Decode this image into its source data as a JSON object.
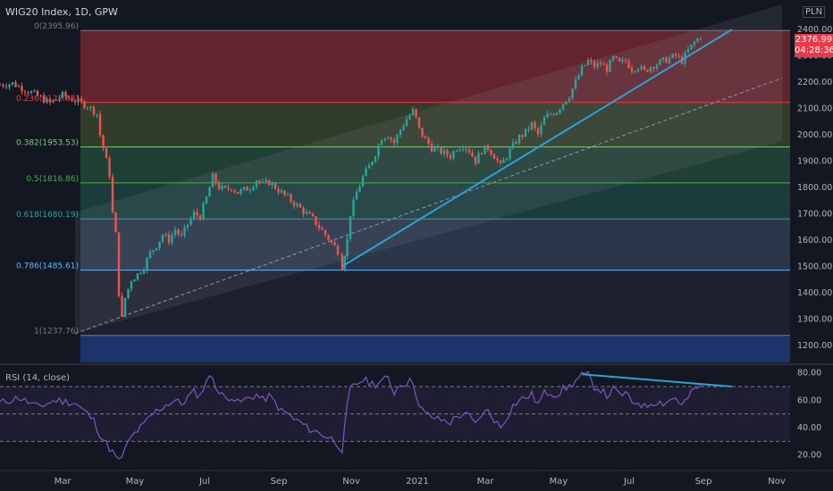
{
  "header": {
    "symbol": "WIG20 Index, 1D, GPW",
    "currency": "PLN"
  },
  "price_tag": {
    "price": "2376.99",
    "countdown": "04:28:36"
  },
  "rsi": {
    "title": "RSI (14, close)"
  },
  "colors": {
    "background": "#131722",
    "up": "#26a69a",
    "down": "#ef5350",
    "rsi_line": "#7e57c2",
    "trend": "#2ba2d6",
    "fib_line": "#787b86"
  },
  "chart_data": [
    {
      "type": "candlestick",
      "title": "WIG20 Index, 1D, GPW",
      "x_axis": {
        "labels": [
          "Mar",
          "May",
          "Jul",
          "Sep",
          "Nov",
          "2021",
          "Mar",
          "May",
          "Jul",
          "Sep",
          "Nov"
        ]
      },
      "y_axis": {
        "range": [
          1135,
          2505
        ],
        "ticks": [
          1200,
          1300,
          1400,
          1500,
          1600,
          1700,
          1800,
          1900,
          2000,
          2100,
          2200,
          2300,
          2400
        ],
        "tick_labels": [
          "1200.00",
          "1300.00",
          "1400.00",
          "1500.00",
          "1600.00",
          "1700.00",
          "1800.00",
          "1900.00",
          "2000.00",
          "2100.00",
          "2200.00",
          "2300.00",
          "2400.00"
        ]
      },
      "last_price": 2376.99,
      "fib_levels": [
        {
          "label": "0(2395.96)",
          "ratio": 0,
          "value": 2395.96
        },
        {
          "label": "0.236(2122.62)",
          "ratio": 0.236,
          "value": 2122.62
        },
        {
          "label": "0.382(1953.53)",
          "ratio": 0.382,
          "value": 1953.53
        },
        {
          "label": "0.5(1816.86)",
          "ratio": 0.5,
          "value": 1816.86
        },
        {
          "label": "0.618(1680.19)",
          "ratio": 0.618,
          "value": 1680.19
        },
        {
          "label": "0.786(1485.61)",
          "ratio": 0.786,
          "value": 1485.61
        },
        {
          "label": "1(1237.76)",
          "ratio": 1,
          "value": 1237.76
        }
      ],
      "price_path": [
        [
          0,
          2190
        ],
        [
          2,
          2195
        ],
        [
          5,
          2160
        ],
        [
          8,
          2120
        ],
        [
          10,
          2150
        ],
        [
          12,
          2130
        ],
        [
          14,
          2110
        ],
        [
          15.5,
          2080
        ],
        [
          16,
          2000
        ],
        [
          17,
          1900
        ],
        [
          17.5,
          1850
        ],
        [
          18,
          1700
        ],
        [
          18.5,
          1620
        ],
        [
          19,
          1400
        ],
        [
          19.5,
          1300
        ],
        [
          20,
          1380
        ],
        [
          21,
          1450
        ],
        [
          22,
          1470
        ],
        [
          23,
          1500
        ],
        [
          24,
          1550
        ],
        [
          25,
          1580
        ],
        [
          26,
          1620
        ],
        [
          27,
          1600
        ],
        [
          28,
          1640
        ],
        [
          29,
          1610
        ],
        [
          30,
          1660
        ],
        [
          31,
          1700
        ],
        [
          32,
          1690
        ],
        [
          33,
          1760
        ],
        [
          34,
          1840
        ],
        [
          35,
          1800
        ],
        [
          36,
          1790
        ],
        [
          37,
          1800
        ],
        [
          38,
          1780
        ],
        [
          39,
          1790
        ],
        [
          40,
          1800
        ],
        [
          41,
          1830
        ],
        [
          42,
          1810
        ],
        [
          43,
          1820
        ],
        [
          44,
          1800
        ],
        [
          45,
          1780
        ],
        [
          46,
          1760
        ],
        [
          47,
          1740
        ],
        [
          48,
          1720
        ],
        [
          49,
          1700
        ],
        [
          50,
          1680
        ],
        [
          51,
          1650
        ],
        [
          52,
          1620
        ],
        [
          53,
          1590
        ],
        [
          54,
          1560
        ],
        [
          54.7,
          1500
        ],
        [
          55.5,
          1600
        ],
        [
          56,
          1700
        ],
        [
          57,
          1780
        ],
        [
          58,
          1840
        ],
        [
          59,
          1880
        ],
        [
          60,
          1930
        ],
        [
          61,
          1990
        ],
        [
          62,
          2000
        ],
        [
          63,
          1970
        ],
        [
          64,
          2020
        ],
        [
          65,
          2060
        ],
        [
          66,
          2090
        ],
        [
          66.5,
          2060
        ],
        [
          67,
          2020
        ],
        [
          68,
          1980
        ],
        [
          69,
          1950
        ],
        [
          70,
          1940
        ],
        [
          71,
          1930
        ],
        [
          72,
          1920
        ],
        [
          73,
          1950
        ],
        [
          74,
          1960
        ],
        [
          75,
          1940
        ],
        [
          76,
          1900
        ],
        [
          77,
          1940
        ],
        [
          78,
          1950
        ],
        [
          79,
          1920
        ],
        [
          80,
          1880
        ],
        [
          81,
          1920
        ],
        [
          82,
          1960
        ],
        [
          83,
          1990
        ],
        [
          84,
          2010
        ],
        [
          85,
          2040
        ],
        [
          86,
          2000
        ],
        [
          87,
          2060
        ],
        [
          88,
          2080
        ],
        [
          89,
          2090
        ],
        [
          90,
          2120
        ],
        [
          91,
          2150
        ],
        [
          92,
          2200
        ],
        [
          93,
          2250
        ],
        [
          94,
          2280
        ],
        [
          95,
          2260
        ],
        [
          96,
          2270
        ],
        [
          97,
          2250
        ],
        [
          98,
          2290
        ],
        [
          99,
          2270
        ],
        [
          100,
          2280
        ],
        [
          101,
          2250
        ],
        [
          102,
          2260
        ],
        [
          103,
          2240
        ],
        [
          104,
          2260
        ],
        [
          105,
          2270
        ],
        [
          106,
          2280
        ],
        [
          107,
          2290
        ],
        [
          108,
          2300
        ],
        [
          109,
          2280
        ],
        [
          110,
          2320
        ],
        [
          111,
          2350
        ],
        [
          112,
          2377
        ]
      ],
      "trend_line": {
        "from": [
          54.7,
          1500
        ],
        "to": [
          117,
          2400
        ]
      },
      "dashed_line": {
        "from": [
          12,
          1245
        ],
        "to": [
          125,
          2215
        ]
      },
      "channel": {
        "upper": [
          [
            12,
            1705
          ],
          [
            125,
            2495
          ]
        ],
        "lower": [
          [
            12,
            1245
          ],
          [
            125,
            1975
          ]
        ]
      }
    },
    {
      "type": "line",
      "title": "RSI (14, close)",
      "y_axis": {
        "range": [
          10,
          85
        ],
        "ticks": [
          20,
          40,
          60,
          80
        ],
        "tick_labels": [
          "20.00",
          "40.00",
          "60.00",
          "80.00"
        ]
      },
      "levels": [
        30,
        50,
        70
      ],
      "series": [
        {
          "values": [
            [
              0,
              58
            ],
            [
              3,
              62
            ],
            [
              6,
              55
            ],
            [
              9,
              60
            ],
            [
              12,
              58
            ],
            [
              14,
              50
            ],
            [
              15,
              45
            ],
            [
              16,
              35
            ],
            [
              17,
              28
            ],
            [
              18,
              22
            ],
            [
              19,
              15
            ],
            [
              20,
              24
            ],
            [
              21,
              33
            ],
            [
              22,
              38
            ],
            [
              23,
              42
            ],
            [
              24,
              48
            ],
            [
              25,
              52
            ],
            [
              26,
              55
            ],
            [
              27,
              58
            ],
            [
              28,
              60
            ],
            [
              29,
              57
            ],
            [
              30,
              62
            ],
            [
              31,
              66
            ],
            [
              32,
              63
            ],
            [
              33,
              75
            ],
            [
              34,
              77
            ],
            [
              35,
              65
            ],
            [
              36,
              62
            ],
            [
              37,
              63
            ],
            [
              38,
              58
            ],
            [
              39,
              60
            ],
            [
              40,
              62
            ],
            [
              41,
              64
            ],
            [
              42,
              60
            ],
            [
              43,
              63
            ],
            [
              44,
              58
            ],
            [
              45,
              52
            ],
            [
              46,
              50
            ],
            [
              47,
              46
            ],
            [
              48,
              44
            ],
            [
              49,
              40
            ],
            [
              50,
              38
            ],
            [
              51,
              36
            ],
            [
              52,
              34
            ],
            [
              53,
              32
            ],
            [
              54,
              28
            ],
            [
              54.7,
              24
            ],
            [
              55.5,
              55
            ],
            [
              56,
              68
            ],
            [
              57,
              72
            ],
            [
              58,
              75
            ],
            [
              59,
              73
            ],
            [
              60,
              72
            ],
            [
              61,
              74
            ],
            [
              62,
              76
            ],
            [
              63,
              66
            ],
            [
              64,
              72
            ],
            [
              65,
              73
            ],
            [
              66,
              74
            ],
            [
              66.5,
              65
            ],
            [
              67,
              55
            ],
            [
              68,
              50
            ],
            [
              69,
              48
            ],
            [
              70,
              46
            ],
            [
              71,
              45
            ],
            [
              72,
              44
            ],
            [
              73,
              48
            ],
            [
              74,
              50
            ],
            [
              75,
              48
            ],
            [
              76,
              42
            ],
            [
              77,
              50
            ],
            [
              78,
              52
            ],
            [
              79,
              46
            ],
            [
              80,
              40
            ],
            [
              81,
              48
            ],
            [
              82,
              56
            ],
            [
              83,
              60
            ],
            [
              84,
              62
            ],
            [
              85,
              64
            ],
            [
              86,
              57
            ],
            [
              87,
              65
            ],
            [
              88,
              66
            ],
            [
              89,
              64
            ],
            [
              90,
              68
            ],
            [
              91,
              70
            ],
            [
              92,
              74
            ],
            [
              93,
              78
            ],
            [
              94,
              78
            ],
            [
              95,
              70
            ],
            [
              96,
              68
            ],
            [
              97,
              63
            ],
            [
              98,
              68
            ],
            [
              99,
              64
            ],
            [
              100,
              65
            ],
            [
              101,
              58
            ],
            [
              102,
              59
            ],
            [
              103,
              55
            ],
            [
              104,
              58
            ],
            [
              105,
              59
            ],
            [
              106,
              58
            ],
            [
              107,
              60
            ],
            [
              108,
              62
            ],
            [
              109,
              56
            ],
            [
              110,
              62
            ],
            [
              111,
              68
            ],
            [
              112,
              71
            ]
          ]
        }
      ],
      "divergence_line": {
        "from": [
          93,
          79
        ],
        "to": [
          117,
          70
        ]
      }
    }
  ]
}
